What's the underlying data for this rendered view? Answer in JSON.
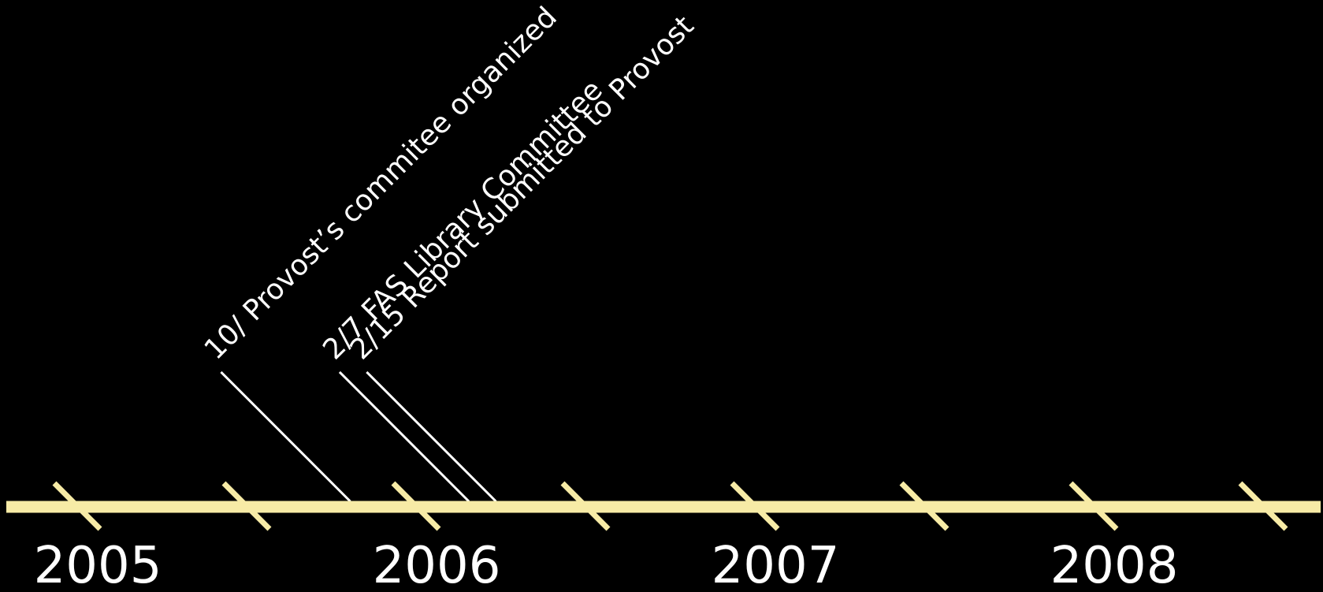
{
  "colors": {
    "background": "#000000",
    "axis": "#f7eba6",
    "text": "#ffffff",
    "leader": "#ffffff"
  },
  "timeline": {
    "start": 2005,
    "end": 2008.9,
    "tick_interval": 0.5,
    "years": [
      {
        "value": 2005,
        "label": "2005"
      },
      {
        "value": 2006,
        "label": "2006"
      },
      {
        "value": 2007,
        "label": "2007"
      },
      {
        "value": 2008,
        "label": "2008"
      }
    ],
    "events": [
      {
        "date": 2005.75,
        "label": "10/ Provost’s commitee organized"
      },
      {
        "date": 2006.1,
        "label": "2/7 FAS Library Committee"
      },
      {
        "date": 2006.18,
        "label": "2/15 Report submitted to Provost"
      }
    ]
  }
}
